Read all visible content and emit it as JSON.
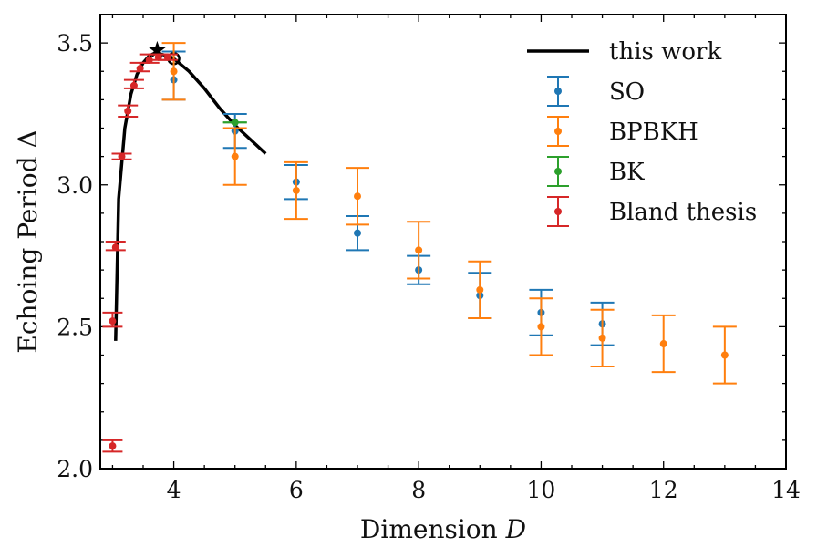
{
  "chart_data": {
    "type": "scatter",
    "title": "",
    "xlabel": "Dimension ",
    "xlabel_var": "D",
    "ylabel": "Echoing Period Δ",
    "xlim": [
      2.8,
      14
    ],
    "ylim": [
      2.0,
      3.6
    ],
    "x_ticks": [
      4,
      6,
      8,
      10,
      12,
      14
    ],
    "x_tick_labels": [
      "4",
      "6",
      "8",
      "10",
      "12",
      "14"
    ],
    "y_ticks": [
      2.0,
      2.5,
      3.0,
      3.5
    ],
    "y_tick_labels": [
      "2.0",
      "2.5",
      "3.0",
      "3.5"
    ],
    "legend_position": "top-right",
    "curve": {
      "name": "this work",
      "color": "#000000",
      "x": [
        3.05,
        3.1,
        3.2,
        3.3,
        3.4,
        3.5,
        3.6,
        3.7,
        3.8,
        3.9,
        4.0,
        4.25,
        4.5,
        4.75,
        5.0,
        5.25,
        5.5
      ],
      "y": [
        2.45,
        2.95,
        3.2,
        3.32,
        3.39,
        3.43,
        3.455,
        3.465,
        3.46,
        3.455,
        3.445,
        3.4,
        3.34,
        3.27,
        3.21,
        3.16,
        3.11
      ],
      "star": {
        "x": 3.73,
        "y": 3.475
      },
      "circle": {
        "x": 4.0,
        "y": 3.445
      }
    },
    "series": [
      {
        "name": "SO",
        "color": "#1f77b4",
        "points": [
          {
            "x": 4,
            "y": 3.37,
            "lo": 3.3,
            "hi": 3.47
          },
          {
            "x": 5,
            "y": 3.19,
            "lo": 3.13,
            "hi": 3.25
          },
          {
            "x": 6,
            "y": 3.01,
            "lo": 2.95,
            "hi": 3.07
          },
          {
            "x": 7,
            "y": 2.83,
            "lo": 2.77,
            "hi": 2.89
          },
          {
            "x": 8,
            "y": 2.7,
            "lo": 2.65,
            "hi": 2.75
          },
          {
            "x": 9,
            "y": 2.61,
            "lo": 2.53,
            "hi": 2.69
          },
          {
            "x": 10,
            "y": 2.55,
            "lo": 2.47,
            "hi": 2.63
          },
          {
            "x": 11,
            "y": 2.51,
            "lo": 2.435,
            "hi": 2.585
          }
        ]
      },
      {
        "name": "BPBKH",
        "color": "#ff7f0e",
        "points": [
          {
            "x": 4,
            "y": 3.4,
            "lo": 3.3,
            "hi": 3.5
          },
          {
            "x": 5,
            "y": 3.1,
            "lo": 3.0,
            "hi": 3.2
          },
          {
            "x": 6,
            "y": 2.98,
            "lo": 2.88,
            "hi": 3.08
          },
          {
            "x": 7,
            "y": 2.96,
            "lo": 2.86,
            "hi": 3.06
          },
          {
            "x": 8,
            "y": 2.77,
            "lo": 2.67,
            "hi": 2.87
          },
          {
            "x": 9,
            "y": 2.63,
            "lo": 2.53,
            "hi": 2.73
          },
          {
            "x": 10,
            "y": 2.5,
            "lo": 2.4,
            "hi": 2.6
          },
          {
            "x": 11,
            "y": 2.46,
            "lo": 2.36,
            "hi": 2.56
          },
          {
            "x": 12,
            "y": 2.44,
            "lo": 2.34,
            "hi": 2.54
          },
          {
            "x": 13,
            "y": 2.4,
            "lo": 2.3,
            "hi": 2.5
          }
        ]
      },
      {
        "name": "BK",
        "color": "#2ca02c",
        "points": [
          {
            "x": 5,
            "y": 3.22,
            "lo": 3.22,
            "hi": 3.22
          }
        ]
      },
      {
        "name": "Bland thesis",
        "color": "#d62728",
        "points": [
          {
            "x": 3.0,
            "y": 2.08,
            "lo": 2.06,
            "hi": 2.1
          },
          {
            "x": 3.0,
            "y": 2.52,
            "lo": 2.5,
            "hi": 2.55
          },
          {
            "x": 3.05,
            "y": 2.78,
            "lo": 2.77,
            "hi": 2.8
          },
          {
            "x": 3.15,
            "y": 3.1,
            "lo": 3.09,
            "hi": 3.11
          },
          {
            "x": 3.25,
            "y": 3.26,
            "lo": 3.24,
            "hi": 3.28
          },
          {
            "x": 3.35,
            "y": 3.35,
            "lo": 3.34,
            "hi": 3.37
          },
          {
            "x": 3.45,
            "y": 3.41,
            "lo": 3.4,
            "hi": 3.43
          },
          {
            "x": 3.6,
            "y": 3.44,
            "lo": 3.43,
            "hi": 3.46
          },
          {
            "x": 3.75,
            "y": 3.45,
            "lo": 3.44,
            "hi": 3.46
          },
          {
            "x": 3.9,
            "y": 3.45,
            "lo": 3.44,
            "hi": 3.46
          }
        ]
      }
    ]
  }
}
